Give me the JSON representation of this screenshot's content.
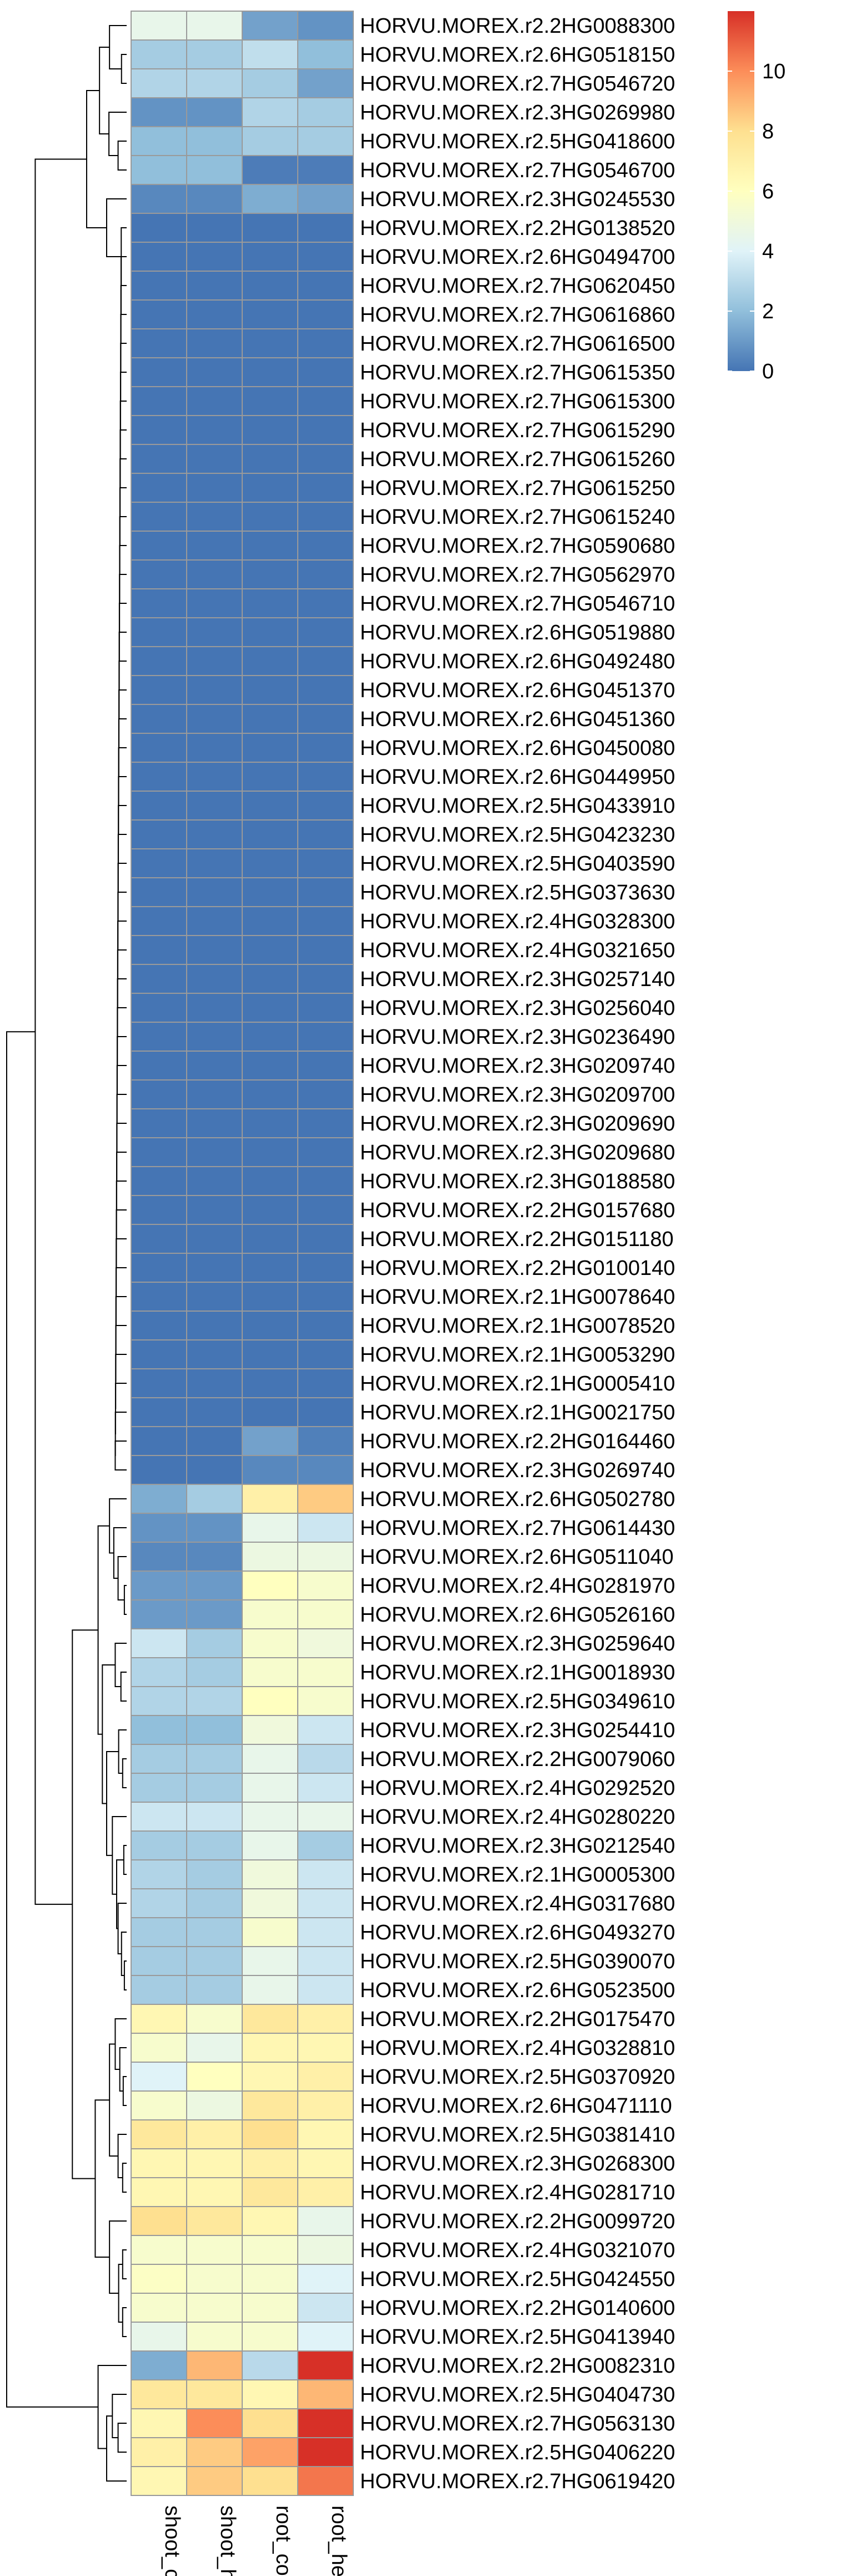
{
  "chart_data": {
    "type": "heatmap",
    "title": "",
    "columns": [
      "shoot_control",
      "shoot_heat",
      "root_control",
      "root_heat"
    ],
    "rows": [
      "HORVU.MOREX.r2.2HG0088300",
      "HORVU.MOREX.r2.6HG0518150",
      "HORVU.MOREX.r2.7HG0546720",
      "HORVU.MOREX.r2.3HG0269980",
      "HORVU.MOREX.r2.5HG0418600",
      "HORVU.MOREX.r2.7HG0546700",
      "HORVU.MOREX.r2.3HG0245530",
      "HORVU.MOREX.r2.2HG0138520",
      "HORVU.MOREX.r2.6HG0494700",
      "HORVU.MOREX.r2.7HG0620450",
      "HORVU.MOREX.r2.7HG0616860",
      "HORVU.MOREX.r2.7HG0616500",
      "HORVU.MOREX.r2.7HG0615350",
      "HORVU.MOREX.r2.7HG0615300",
      "HORVU.MOREX.r2.7HG0615290",
      "HORVU.MOREX.r2.7HG0615260",
      "HORVU.MOREX.r2.7HG0615250",
      "HORVU.MOREX.r2.7HG0615240",
      "HORVU.MOREX.r2.7HG0590680",
      "HORVU.MOREX.r2.7HG0562970",
      "HORVU.MOREX.r2.7HG0546710",
      "HORVU.MOREX.r2.6HG0519880",
      "HORVU.MOREX.r2.6HG0492480",
      "HORVU.MOREX.r2.6HG0451370",
      "HORVU.MOREX.r2.6HG0451360",
      "HORVU.MOREX.r2.6HG0450080",
      "HORVU.MOREX.r2.6HG0449950",
      "HORVU.MOREX.r2.5HG0433910",
      "HORVU.MOREX.r2.5HG0423230",
      "HORVU.MOREX.r2.5HG0403590",
      "HORVU.MOREX.r2.5HG0373630",
      "HORVU.MOREX.r2.4HG0328300",
      "HORVU.MOREX.r2.4HG0321650",
      "HORVU.MOREX.r2.3HG0257140",
      "HORVU.MOREX.r2.3HG0256040",
      "HORVU.MOREX.r2.3HG0236490",
      "HORVU.MOREX.r2.3HG0209740",
      "HORVU.MOREX.r2.3HG0209700",
      "HORVU.MOREX.r2.3HG0209690",
      "HORVU.MOREX.r2.3HG0209680",
      "HORVU.MOREX.r2.3HG0188580",
      "HORVU.MOREX.r2.2HG0157680",
      "HORVU.MOREX.r2.2HG0151180",
      "HORVU.MOREX.r2.2HG0100140",
      "HORVU.MOREX.r2.1HG0078640",
      "HORVU.MOREX.r2.1HG0078520",
      "HORVU.MOREX.r2.1HG0053290",
      "HORVU.MOREX.r2.1HG0005410",
      "HORVU.MOREX.r2.1HG0021750",
      "HORVU.MOREX.r2.2HG0164460",
      "HORVU.MOREX.r2.3HG0269740",
      "HORVU.MOREX.r2.6HG0502780",
      "HORVU.MOREX.r2.7HG0614430",
      "HORVU.MOREX.r2.6HG0511040",
      "HORVU.MOREX.r2.4HG0281970",
      "HORVU.MOREX.r2.6HG0526160",
      "HORVU.MOREX.r2.3HG0259640",
      "HORVU.MOREX.r2.1HG0018930",
      "HORVU.MOREX.r2.5HG0349610",
      "HORVU.MOREX.r2.3HG0254410",
      "HORVU.MOREX.r2.2HG0079060",
      "HORVU.MOREX.r2.4HG0292520",
      "HORVU.MOREX.r2.4HG0280220",
      "HORVU.MOREX.r2.3HG0212540",
      "HORVU.MOREX.r2.1HG0005300",
      "HORVU.MOREX.r2.4HG0317680",
      "HORVU.MOREX.r2.6HG0493270",
      "HORVU.MOREX.r2.5HG0390070",
      "HORVU.MOREX.r2.6HG0523500",
      "HORVU.MOREX.r2.2HG0175470",
      "HORVU.MOREX.r2.4HG0328810",
      "HORVU.MOREX.r2.5HG0370920",
      "HORVU.MOREX.r2.6HG0471110",
      "HORVU.MOREX.r2.5HG0381410",
      "HORVU.MOREX.r2.3HG0268300",
      "HORVU.MOREX.r2.4HG0281710",
      "HORVU.MOREX.r2.2HG0099720",
      "HORVU.MOREX.r2.4HG0321070",
      "HORVU.MOREX.r2.5HG0424550",
      "HORVU.MOREX.r2.2HG0140600",
      "HORVU.MOREX.r2.5HG0413940",
      "HORVU.MOREX.r2.2HG0082310",
      "HORVU.MOREX.r2.5HG0404730",
      "HORVU.MOREX.r2.7HG0563130",
      "HORVU.MOREX.r2.5HG0406220",
      "HORVU.MOREX.r2.7HG0619420"
    ],
    "values": [
      [
        4.5,
        4.5,
        1.2,
        0.8
      ],
      [
        2.5,
        2.5,
        3.2,
        2.0
      ],
      [
        2.8,
        2.8,
        2.5,
        1.2
      ],
      [
        0.8,
        0.8,
        2.8,
        2.5
      ],
      [
        2.0,
        2.0,
        2.5,
        2.5
      ],
      [
        2.0,
        2.0,
        0.2,
        0.2
      ],
      [
        0.5,
        0.5,
        1.5,
        1.2
      ],
      [
        0,
        0,
        0,
        0
      ],
      [
        0,
        0,
        0,
        0
      ],
      [
        0,
        0,
        0,
        0
      ],
      [
        0,
        0,
        0,
        0
      ],
      [
        0,
        0,
        0,
        0
      ],
      [
        0,
        0,
        0,
        0
      ],
      [
        0,
        0,
        0,
        0
      ],
      [
        0,
        0,
        0,
        0
      ],
      [
        0,
        0,
        0,
        0
      ],
      [
        0,
        0,
        0,
        0
      ],
      [
        0,
        0,
        0,
        0
      ],
      [
        0,
        0,
        0,
        0
      ],
      [
        0,
        0,
        0,
        0
      ],
      [
        0,
        0,
        0,
        0
      ],
      [
        0,
        0,
        0,
        0
      ],
      [
        0,
        0,
        0,
        0
      ],
      [
        0,
        0,
        0,
        0
      ],
      [
        0,
        0,
        0,
        0
      ],
      [
        0,
        0,
        0,
        0
      ],
      [
        0,
        0,
        0,
        0
      ],
      [
        0,
        0,
        0,
        0
      ],
      [
        0,
        0,
        0,
        0
      ],
      [
        0,
        0,
        0,
        0
      ],
      [
        0,
        0,
        0,
        0
      ],
      [
        0,
        0,
        0,
        0
      ],
      [
        0,
        0,
        0,
        0
      ],
      [
        0,
        0,
        0,
        0
      ],
      [
        0,
        0,
        0,
        0
      ],
      [
        0,
        0,
        0,
        0
      ],
      [
        0,
        0,
        0,
        0
      ],
      [
        0,
        0,
        0,
        0
      ],
      [
        0,
        0,
        0,
        0
      ],
      [
        0,
        0,
        0,
        0
      ],
      [
        0,
        0,
        0,
        0
      ],
      [
        0,
        0,
        0,
        0
      ],
      [
        0,
        0,
        0,
        0
      ],
      [
        0,
        0,
        0,
        0
      ],
      [
        0,
        0,
        0,
        0
      ],
      [
        0,
        0,
        0,
        0
      ],
      [
        0,
        0,
        0,
        0
      ],
      [
        0,
        0,
        0,
        0
      ],
      [
        0,
        0,
        0,
        0
      ],
      [
        0,
        0,
        1.2,
        0.3
      ],
      [
        0,
        0,
        0.5,
        0.5
      ],
      [
        1.5,
        2.5,
        7.0,
        8.5
      ],
      [
        0.8,
        0.8,
        4.5,
        3.5
      ],
      [
        0.5,
        0.5,
        4.8,
        4.8
      ],
      [
        1.0,
        1.0,
        6.0,
        5.5
      ],
      [
        1.0,
        1.0,
        5.5,
        5.5
      ],
      [
        3.5,
        2.5,
        5.5,
        5.0
      ],
      [
        2.8,
        2.5,
        5.5,
        5.5
      ],
      [
        2.8,
        2.8,
        6.0,
        5.5
      ],
      [
        2.0,
        2.0,
        5.0,
        3.5
      ],
      [
        2.5,
        2.5,
        4.5,
        3.0
      ],
      [
        2.5,
        2.5,
        4.5,
        3.5
      ],
      [
        3.5,
        3.5,
        4.5,
        4.5
      ],
      [
        2.5,
        2.5,
        4.5,
        2.5
      ],
      [
        2.8,
        2.5,
        5.0,
        3.5
      ],
      [
        2.8,
        2.5,
        5.0,
        3.5
      ],
      [
        2.5,
        2.5,
        5.5,
        3.5
      ],
      [
        2.5,
        2.5,
        4.5,
        3.5
      ],
      [
        2.5,
        2.5,
        4.5,
        3.5
      ],
      [
        6.5,
        5.5,
        7.5,
        7.0
      ],
      [
        5.5,
        4.5,
        6.5,
        6.5
      ],
      [
        4.0,
        6.0,
        6.5,
        7.0
      ],
      [
        5.5,
        4.8,
        7.5,
        7.0
      ],
      [
        7.5,
        7.0,
        8.0,
        6.5
      ],
      [
        6.5,
        6.5,
        7.0,
        6.5
      ],
      [
        6.5,
        6.5,
        7.5,
        7.0
      ],
      [
        8.0,
        7.5,
        6.5,
        4.5
      ],
      [
        5.5,
        5.5,
        5.5,
        4.8
      ],
      [
        5.8,
        5.5,
        5.5,
        4.0
      ],
      [
        5.5,
        5.5,
        5.5,
        3.5
      ],
      [
        4.5,
        5.5,
        5.5,
        4.0
      ],
      [
        1.5,
        9.0,
        3.0,
        12.0
      ],
      [
        7.5,
        7.5,
        6.5,
        9.0
      ],
      [
        6.5,
        10.0,
        8.0,
        12.0
      ],
      [
        7.0,
        8.5,
        9.5,
        12.0
      ],
      [
        6.5,
        8.5,
        8.0,
        10.5
      ]
    ],
    "color_scale": {
      "min": 0,
      "max": 12,
      "stops": [
        "#4575b4",
        "#91bfdb",
        "#e0f3f8",
        "#ffffbf",
        "#fee090",
        "#fc8d59",
        "#d73027"
      ]
    },
    "legend": {
      "placement": "top-right",
      "ticks": [
        0,
        2,
        4,
        6,
        8,
        10
      ]
    },
    "row_dendrogram": true,
    "column_dendrogram": false
  }
}
